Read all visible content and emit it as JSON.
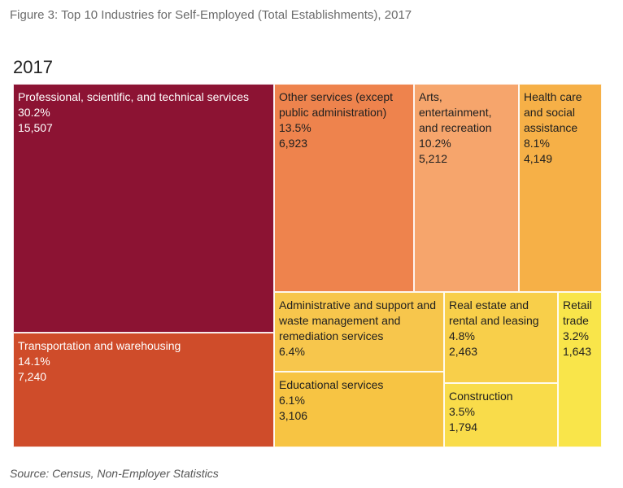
{
  "figure_title": "Figure 3: Top 10 Industries for Self-Employed (Total Establishments), 2017",
  "year_label": "2017",
  "source": "Source: Census, Non-Employer Statistics",
  "chart_data": {
    "type": "treemap",
    "title": "2017",
    "items": [
      {
        "label": "Professional, scientific, and technical services",
        "percent": "30.2%",
        "value": 15507,
        "value_label": "15,507",
        "color": "#8c1333",
        "text": "light"
      },
      {
        "label": "Transportation and warehousing",
        "percent": "14.1%",
        "value": 7240,
        "value_label": "7,240",
        "color": "#cf4c2a",
        "text": "light"
      },
      {
        "label": "Other services (except public administration)",
        "percent": "13.5%",
        "value": 6923,
        "value_label": "6,923",
        "color": "#ee834d",
        "text": "dark"
      },
      {
        "label": "Arts, entertainment, and recreation",
        "percent": "10.2%",
        "value": 5212,
        "value_label": "5,212",
        "color": "#f6a56c",
        "text": "dark"
      },
      {
        "label": "Health care and social assistance",
        "percent": "8.1%",
        "value": 4149,
        "value_label": "4,149",
        "color": "#f6b047",
        "text": "dark"
      },
      {
        "label": "Administrative and support and waste management and remediation services",
        "percent": "6.4%",
        "value": null,
        "value_label": "",
        "color": "#f7c64c",
        "text": "dark"
      },
      {
        "label": "Educational services",
        "percent": "6.1%",
        "value": 3106,
        "value_label": "3,106",
        "color": "#f7c443",
        "text": "dark"
      },
      {
        "label": "Real estate and rental and leasing",
        "percent": "4.8%",
        "value": 2463,
        "value_label": "2,463",
        "color": "#f8cf4a",
        "text": "dark"
      },
      {
        "label": "Construction",
        "percent": "3.5%",
        "value": 1794,
        "value_label": "1,794",
        "color": "#f9dc4a",
        "text": "dark"
      },
      {
        "label": "Retail trade",
        "percent": "3.2%",
        "value": 1643,
        "value_label": "1,643",
        "color": "#f9e54a",
        "text": "dark"
      }
    ]
  }
}
